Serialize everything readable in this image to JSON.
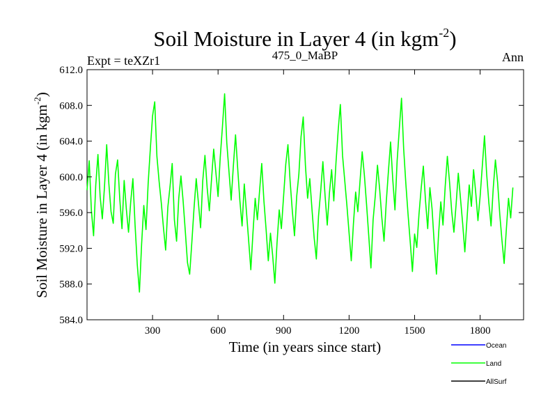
{
  "chart_data": {
    "type": "line",
    "title": "Soil Moisture in Layer 4 (in kgm",
    "title_sup": "-2",
    "title_close": ")",
    "subtitle_left": "Expt = teXZr1",
    "subtitle_center": "475_0_MaBP",
    "subtitle_right": "Ann",
    "xlabel": "Time (in years since start)",
    "ylabel": "Soil Moisture in Layer 4 (in kgm",
    "ylabel_sup": "-2",
    "ylabel_close": ")",
    "xlim": [
      0,
      1999
    ],
    "ylim": [
      584.0,
      612.0
    ],
    "x_ticks": [
      300,
      600,
      900,
      1200,
      1500,
      1800
    ],
    "x_tick_labels": [
      "300",
      "600",
      "900",
      "1200",
      "1500",
      "1800"
    ],
    "y_ticks": [
      584.0,
      588.0,
      592.0,
      596.0,
      600.0,
      604.0,
      608.0,
      612.0
    ],
    "y_tick_labels": [
      "584.0",
      "588.0",
      "592.0",
      "596.0",
      "600.0",
      "604.0",
      "608.0",
      "612.0"
    ],
    "legend": [
      {
        "name": "Ocean",
        "color": "#0000ff"
      },
      {
        "name": "Land",
        "color": "#00ff00"
      },
      {
        "name": "AllSurf",
        "color": "#000000"
      }
    ],
    "series": [
      {
        "name": "Land",
        "color": "#00ff00",
        "x_start": 0,
        "x_step": 10,
        "values": [
          598.5,
          601.8,
          596.2,
          593.4,
          599.1,
          602.5,
          597.8,
          595.3,
          598.9,
          603.6,
          599.2,
          596.1,
          594.8,
          600.3,
          601.9,
          597.5,
          594.2,
          599.6,
          596.4,
          593.8,
          597.2,
          599.8,
          594.6,
          590.2,
          587.1,
          592.5,
          596.8,
          594.1,
          599.3,
          603.2,
          606.8,
          608.4,
          602.3,
          599.5,
          597.1,
          594.3,
          591.8,
          596.6,
          598.9,
          601.5,
          595.2,
          592.8,
          597.6,
          600.1,
          597.3,
          593.9,
          590.4,
          589.1,
          592.7,
          596.5,
          599.8,
          597.1,
          594.3,
          599.6,
          602.4,
          598.8,
          596.2,
          599.7,
          603.1,
          600.5,
          597.8,
          602.2,
          605.6,
          609.3,
          603.8,
          600.6,
          597.4,
          601.2,
          604.7,
          600.9,
          597.3,
          594.5,
          599.2,
          596.1,
          592.9,
          589.6,
          593.8,
          597.6,
          595.2,
          598.4,
          601.5,
          597.3,
          594.1,
          590.6,
          593.7,
          591.2,
          588.1,
          592.6,
          596.3,
          594.2,
          597.8,
          601.4,
          603.6,
          599.5,
          596.2,
          593.4,
          597.8,
          600.3,
          604.5,
          606.7,
          601.3,
          597.6,
          599.8,
          596.4,
          593.2,
          590.8,
          595.6,
          598.4,
          601.7,
          597.9,
          594.6,
          598.2,
          600.8,
          597.3,
          601.6,
          605.2,
          608.1,
          602.4,
          599.6,
          596.8,
          593.7,
          590.6,
          594.8,
          598.3,
          596.1,
          599.5,
          602.8,
          600.2,
          596.9,
          593.4,
          589.8,
          595.2,
          597.9,
          601.3,
          598.6,
          595.4,
          592.8,
          597.1,
          600.6,
          603.9,
          599.7,
          596.3,
          601.8,
          605.4,
          608.8,
          603.1,
          599.2,
          595.8,
          592.7,
          589.4,
          593.6,
          592.1,
          595.8,
          598.7,
          601.2,
          597.3,
          594.2,
          598.8,
          596.4,
          592.5,
          589.1,
          593.7,
          597.2,
          594.6,
          598.9,
          602.3,
          599.4,
          596.1,
          593.8,
          596.9,
          600.4,
          597.6,
          594.8,
          591.6,
          595.3,
          599.1,
          596.7,
          600.8,
          598.2,
          595.1,
          597.8,
          601.2,
          604.6,
          600.3,
          597.1,
          594.5,
          598.7,
          601.9,
          599.4,
          595.8,
          592.9,
          590.3,
          594.1,
          597.6,
          595.4,
          598.8
        ]
      }
    ]
  }
}
